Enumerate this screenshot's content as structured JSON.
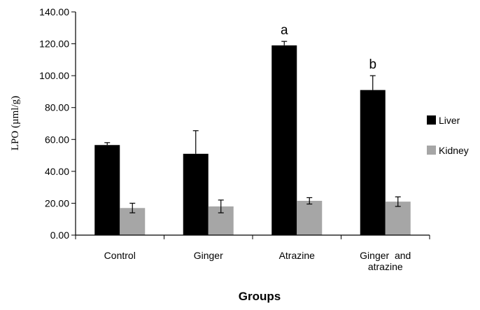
{
  "chart_data": {
    "type": "bar",
    "title": "",
    "xlabel": "Groups",
    "ylabel": "LPO (µml/g)",
    "ylim": [
      0,
      140
    ],
    "yticks": [
      "0.00",
      "20.00",
      "40.00",
      "60.00",
      "80.00",
      "100.00",
      "120.00",
      "140.00"
    ],
    "categories": [
      [
        "Control"
      ],
      [
        "Ginger"
      ],
      [
        "Atrazine"
      ],
      [
        "Ginger  and",
        "atrazine"
      ]
    ],
    "series": [
      {
        "name": "Liver",
        "color": "#000000",
        "values": [
          56.5,
          51,
          119,
          91
        ],
        "errors": [
          1.5,
          14.5,
          2.5,
          9
        ]
      },
      {
        "name": "Kidney",
        "color": "#a6a6a6",
        "values": [
          17,
          18,
          21.5,
          21
        ],
        "errors": [
          3,
          4,
          2,
          3
        ]
      }
    ],
    "annotations": [
      {
        "category": 2,
        "series": 0,
        "text": "a"
      },
      {
        "category": 3,
        "series": 0,
        "text": "b"
      }
    ],
    "legend_position": "right",
    "grid": false
  }
}
